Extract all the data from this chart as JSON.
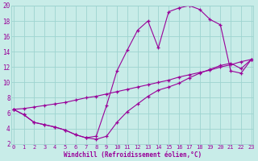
{
  "xlabel": "Windchill (Refroidissement éolien,°C)",
  "bg_color": "#c8ece8",
  "grid_color": "#9ed4d0",
  "line_color": "#990099",
  "x_upper": [
    0,
    1,
    2,
    3,
    4,
    5,
    6,
    7,
    8,
    9,
    10,
    11,
    12,
    13,
    14,
    15,
    16,
    17,
    18,
    19,
    20,
    21,
    22,
    23
  ],
  "y_upper": [
    6.5,
    5.8,
    4.8,
    4.5,
    4.2,
    3.8,
    3.2,
    2.8,
    3.0,
    7.0,
    11.5,
    14.2,
    16.8,
    18.0,
    14.5,
    19.2,
    19.7,
    20.0,
    19.5,
    18.2,
    17.5,
    11.5,
    11.2,
    13.0
  ],
  "x_mid": [
    0,
    1,
    2,
    3,
    4,
    5,
    6,
    7,
    8,
    9,
    10,
    11,
    12,
    13,
    14,
    15,
    16,
    17,
    18,
    19,
    20,
    21,
    22,
    23
  ],
  "y_mid": [
    6.5,
    6.6,
    6.8,
    7.0,
    7.2,
    7.4,
    7.7,
    8.0,
    8.2,
    8.5,
    8.8,
    9.1,
    9.4,
    9.7,
    10.0,
    10.3,
    10.7,
    11.0,
    11.3,
    11.6,
    12.0,
    12.3,
    12.7,
    13.0
  ],
  "x_lower": [
    0,
    1,
    2,
    3,
    4,
    5,
    6,
    7,
    8,
    9,
    10,
    11,
    12,
    13,
    14,
    15,
    16,
    17,
    18,
    19,
    20,
    21,
    22,
    23
  ],
  "y_lower": [
    6.5,
    5.8,
    4.8,
    4.5,
    4.2,
    3.8,
    3.2,
    2.8,
    2.6,
    3.0,
    4.8,
    6.2,
    7.2,
    8.2,
    9.0,
    9.4,
    9.9,
    10.6,
    11.2,
    11.7,
    12.2,
    12.5,
    11.8,
    13.0
  ],
  "xlim": [
    -0.2,
    23.2
  ],
  "ylim": [
    2,
    20
  ],
  "yticks": [
    2,
    4,
    6,
    8,
    10,
    12,
    14,
    16,
    18,
    20
  ],
  "xticks": [
    0,
    1,
    2,
    3,
    4,
    5,
    6,
    7,
    8,
    9,
    10,
    11,
    12,
    13,
    14,
    15,
    16,
    17,
    18,
    19,
    20,
    21,
    22,
    23
  ]
}
